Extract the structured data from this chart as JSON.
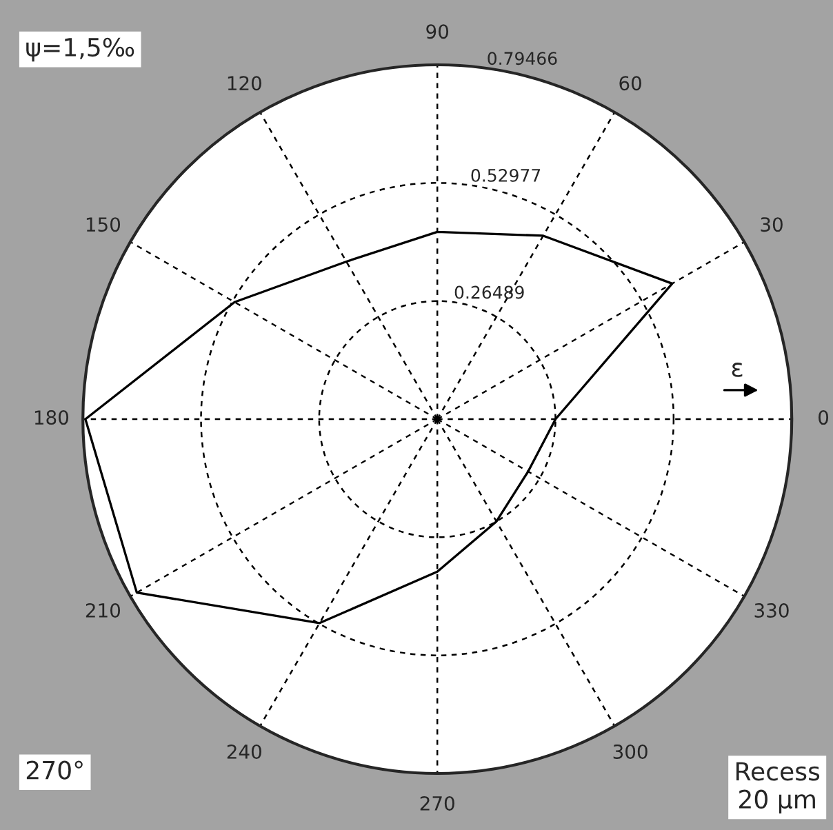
{
  "chart_data": {
    "type": "radar",
    "categories": [
      "90",
      "60",
      "30",
      "0",
      "330",
      "300",
      "270",
      "240",
      "210",
      "180",
      "150",
      "120"
    ],
    "series": [
      {
        "color": "#000000",
        "values": [
          0.42,
          0.475,
          0.608,
          0.265,
          0.235,
          0.265,
          0.342,
          0.528,
          0.778,
          0.789,
          0.525,
          0.408
        ]
      }
    ],
    "ylim": [
      0,
      0.79466
    ],
    "yticks": [
      0.26489,
      0.52977,
      0.79466
    ],
    "grid": true,
    "marker": "none",
    "line_style": "solid",
    "annotations": [
      "ψ=1,5‰",
      "270°",
      "Recess\n20 μm",
      "ε"
    ]
  }
}
